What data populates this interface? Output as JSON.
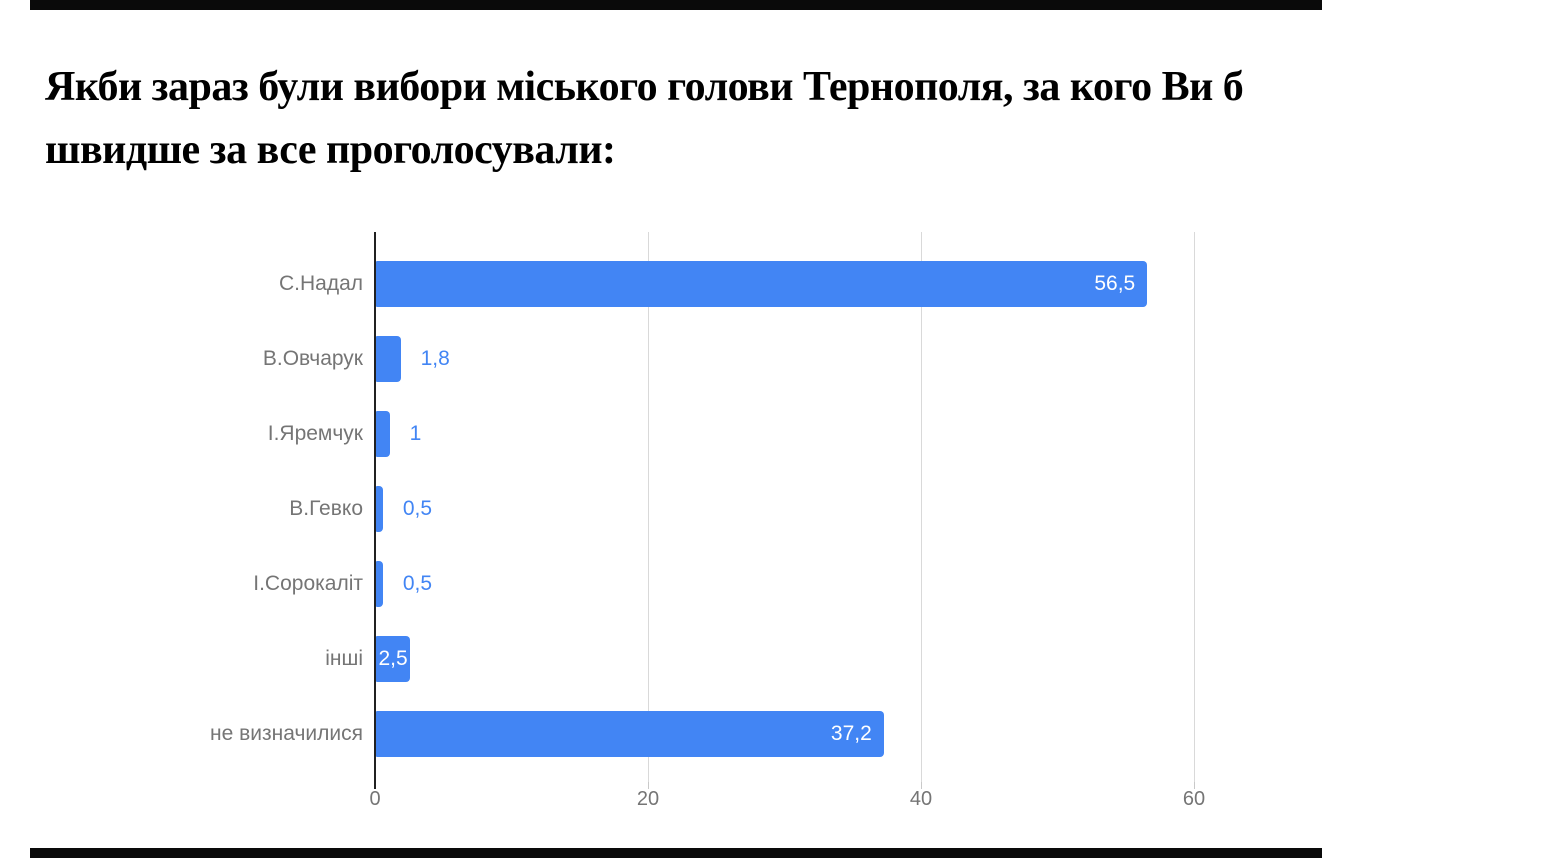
{
  "title": {
    "line1": "Якби зараз були вибори міського голови Тернополя, за кого Ви б",
    "line2": "швидше за все проголосували:"
  },
  "colors": {
    "bar": "#4285f4",
    "value_label_inside": "#ffffff",
    "value_label_outside": "#4285f4",
    "category_label": "#757575",
    "axis_tick_label": "#757575",
    "axis_line": "#212121",
    "gridline": "#d9d9d9",
    "title_text": "#000000",
    "background": "#ffffff"
  },
  "chart_data": {
    "type": "bar",
    "orientation": "horizontal",
    "title": "Якби зараз були вибори міського голови Тернополя, за кого Ви б швидше за все проголосували:",
    "categories": [
      "С.Надал",
      "В.Овчарук",
      "І.Яремчук",
      "В.Гевко",
      "І.Сорокаліт",
      "інші",
      "не визначилися"
    ],
    "values": [
      56.5,
      1.8,
      1,
      0.5,
      0.5,
      2.5,
      37.2
    ],
    "value_labels": [
      "56,5",
      "1,8",
      "1",
      "0,5",
      "0,5",
      "2,5",
      "37,2"
    ],
    "label_placement": [
      "inside",
      "outside",
      "outside",
      "outside",
      "outside",
      "inside-center",
      "inside"
    ],
    "x_ticks": [
      0,
      20,
      40,
      60
    ],
    "x_tick_labels": [
      "0",
      "20",
      "40",
      "60"
    ],
    "xlim": [
      0,
      70
    ],
    "grid": true,
    "legend": "none",
    "xlabel": "",
    "ylabel": ""
  }
}
